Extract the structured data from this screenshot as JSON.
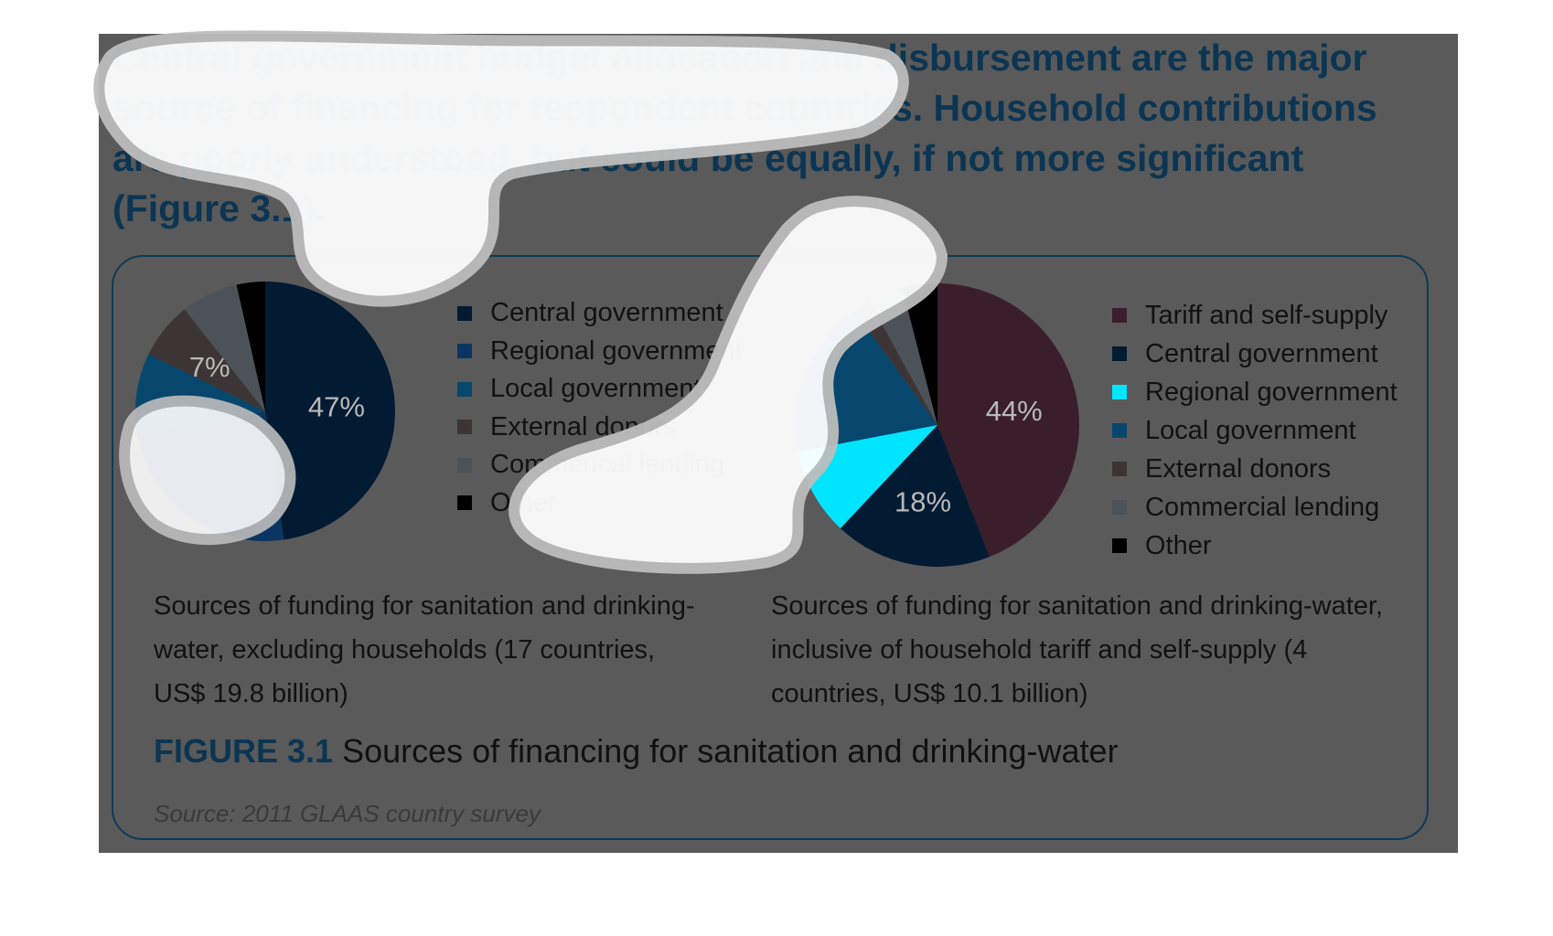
{
  "colors": {
    "background_slide": "#5a5a5a",
    "headline": "#0b3552",
    "figure_border": "#0d3a56",
    "highlight_cyan": "#00e5ff",
    "highlight_white": "#ffffff"
  },
  "headline": "Central government budget allocation and disbursement are the major source of financing for respondent countries. Household contributions are poorly understood, but could be equally, if not more significant (Figure 3.1).",
  "figure": {
    "number": "FIGURE 3.1",
    "title": "Sources of financing for sanitation and drinking-water",
    "source": "Source: 2011 GLAAS country survey"
  },
  "chart_data": [
    {
      "type": "pie",
      "caption": "Sources of funding for sanitation and drinking-water, excluding households (17 countries, US$ 19.8 billion)",
      "legend_placement": "right",
      "start_angle_deg": 0,
      "slices": [
        {
          "label": "Central government",
          "value": 47,
          "color": "#031a33",
          "data_label": "47%"
        },
        {
          "label": "Regional government",
          "value": 24,
          "color": "#0a3560",
          "data_label": ""
        },
        {
          "label": "Local government",
          "value": 10,
          "color": "#07476e",
          "data_label": ""
        },
        {
          "label": "External donors",
          "value": 7,
          "color": "#3d3535",
          "data_label": "7%"
        },
        {
          "label": "Commerical lending",
          "value": 7,
          "color": "#4b5258",
          "data_label": ""
        },
        {
          "label": "Other",
          "value": 3.5,
          "color": "#000000",
          "data_label": ""
        }
      ]
    },
    {
      "type": "pie",
      "caption": "Sources of funding for sanitation and drinking-water, inclusive of household tariff and self-supply (4 countries, US$ 10.1 billion)",
      "legend_placement": "right",
      "start_angle_deg": 0,
      "slices": [
        {
          "label": "Tariff and self-supply",
          "value": 44,
          "color": "#3a1f2b",
          "data_label": "44%"
        },
        {
          "label": "Central government",
          "value": 18,
          "color": "#031a33",
          "data_label": "18%"
        },
        {
          "label": "Regional government",
          "value": 10,
          "color": "#00e5ff",
          "data_label": ""
        },
        {
          "label": "Local government",
          "value": 18,
          "color": "#07476e",
          "data_label": ""
        },
        {
          "label": "External donors",
          "value": 2,
          "color": "#3d3535",
          "data_label": ""
        },
        {
          "label": "Commercial lending",
          "value": 4,
          "color": "#4b5258",
          "data_label": ""
        },
        {
          "label": "Other",
          "value": 4,
          "color": "#000000",
          "data_label": ""
        }
      ]
    }
  ]
}
